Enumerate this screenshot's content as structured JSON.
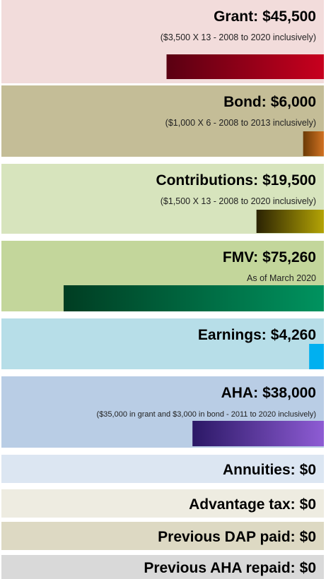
{
  "chart_data": {
    "type": "bar",
    "categories": [
      "Grant:",
      "Bond:",
      "Contributions:",
      "FMV:",
      "Earnings:",
      "AHA:",
      "Annuities:",
      "Advantage tax:",
      "Previous DAP paid:",
      "Previous AHA repaid:"
    ],
    "values": [
      45500,
      6000,
      19500,
      75260,
      4260,
      38000,
      0,
      0,
      0,
      0
    ],
    "value_labels": [
      "$45,500",
      "$6,000",
      "$19,500",
      "$75,260",
      "$4,260",
      "$38,000",
      "$0",
      "$0",
      "$0",
      "$0"
    ],
    "subtitles": [
      "($3,500 X 13 - 2008 to 2020 inclusively)",
      "($1,000 X 6 - 2008 to 2013 inclusively)",
      "($1,500 X 13 - 2008 to 2020 inclusively)",
      "As of March 2020",
      null,
      "($35,000  in grant and $3,000  in bond - 2011  to 2020 inclusively)",
      null,
      null,
      null,
      null
    ],
    "colors": [
      [
        "#5a0012",
        "#c8001e"
      ],
      [
        "#6b3a05",
        "#d27222"
      ],
      [
        "#2a2203",
        "#b4a405"
      ],
      [
        "#003d22",
        "#00935f"
      ],
      [
        "#00b0f0",
        "#00b0f0"
      ],
      [
        "#2b1866",
        "#8e5cd4"
      ],
      [
        "#999999",
        "#999999"
      ],
      [
        "#999999",
        "#999999"
      ],
      [
        "#999999",
        "#999999"
      ],
      [
        "#999999",
        "#999999"
      ]
    ],
    "backgrounds": [
      "#f2dcdb",
      "#c4bd97",
      "#d7e4bd",
      "#c3d69b",
      "#b7dee8",
      "#b9cde5",
      "#dce6f2",
      "#eeece1",
      "#ddd9c3",
      "#d9d9d9"
    ]
  }
}
